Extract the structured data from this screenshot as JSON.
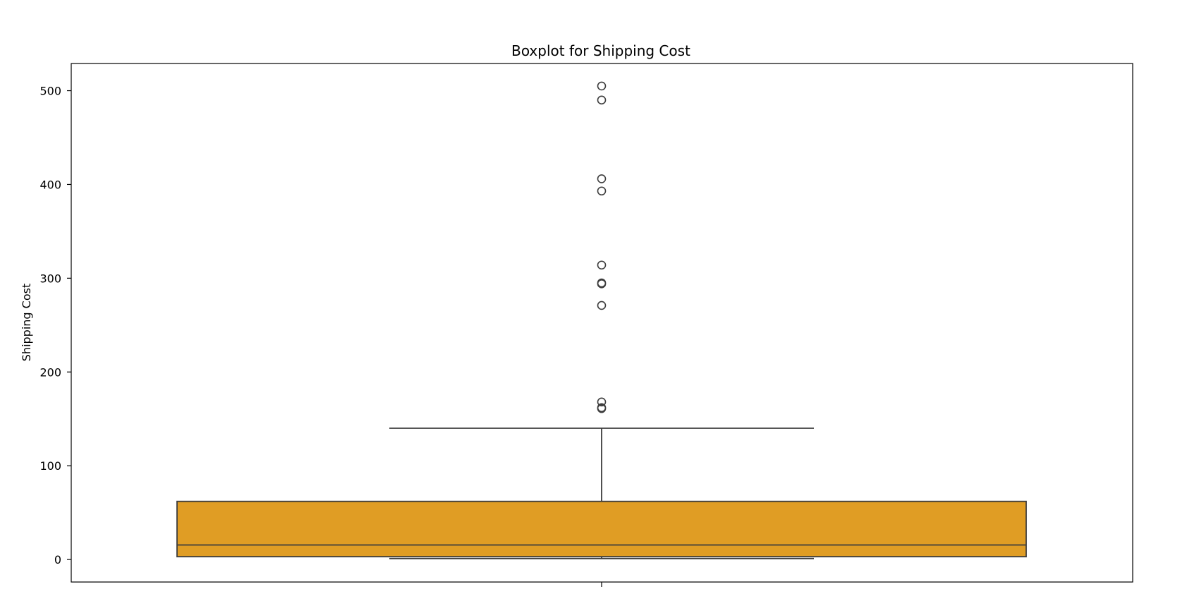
{
  "chart_data": {
    "type": "boxplot",
    "title": "Boxplot for Shipping Cost",
    "xlabel": "",
    "ylabel": "Shipping Cost",
    "ylim": [
      -24,
      529
    ],
    "yticks": [
      0,
      100,
      200,
      300,
      400,
      500
    ],
    "grid": false,
    "box": {
      "whisker_low": 1,
      "q1": 3,
      "median": 15.5,
      "q3": 62,
      "whisker_high": 140
    },
    "outliers": [
      505,
      490,
      406,
      393,
      314,
      295,
      294,
      271,
      168,
      162,
      161
    ],
    "colors": {
      "box_fill": "#E09D24",
      "line": "#3d3d3d",
      "outlier_edge": "#3d3d3d",
      "spine": "#000000"
    }
  }
}
